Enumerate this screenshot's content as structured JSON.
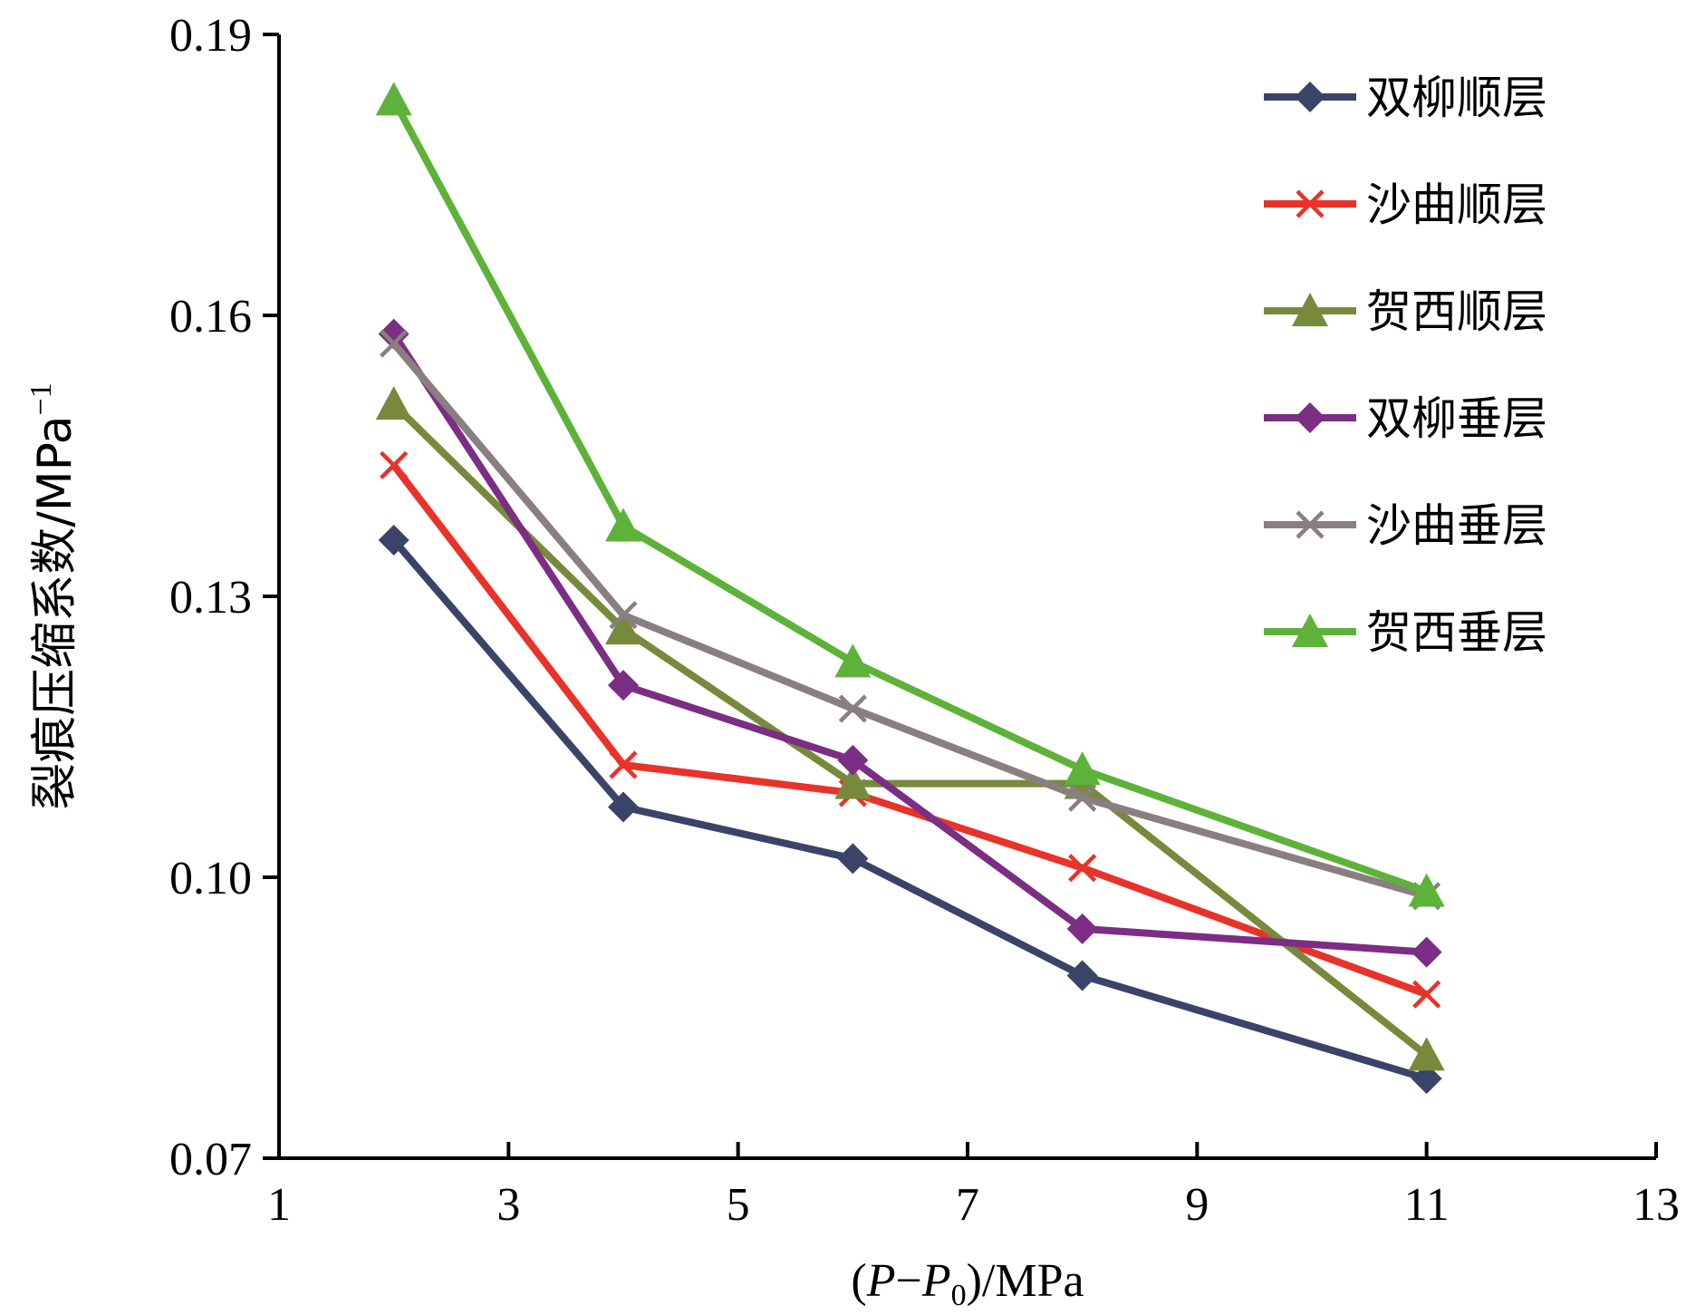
{
  "chart_data": {
    "type": "line",
    "xlabel": "(P−P0)/MPa",
    "xlabel_parts": {
      "open": "(",
      "p": "P",
      "minus": "−",
      "p0": "P",
      "sub": "0",
      "rest": ")/MPa"
    },
    "ylabel": "裂痕压缩系数/MPa−1",
    "ylabel_parts": {
      "main": "裂痕压缩系数/MPa",
      "sup": "−1"
    },
    "xlim": [
      1,
      13
    ],
    "ylim": [
      0.07,
      0.19
    ],
    "x_ticks": [
      1,
      3,
      5,
      7,
      9,
      11,
      13
    ],
    "y_ticks": [
      0.07,
      0.1,
      0.13,
      0.16,
      0.19
    ],
    "x_tick_labels": [
      "1",
      "3",
      "5",
      "7",
      "9",
      "11",
      "13"
    ],
    "y_tick_labels": [
      "0.07",
      "0.10",
      "0.13",
      "0.16",
      "0.19"
    ],
    "grid": false,
    "legend_position": "top-right",
    "x": [
      2,
      4,
      6,
      8,
      11
    ],
    "series": [
      {
        "name": "双柳顺层",
        "color": "#3a4468",
        "marker": "diamond",
        "values": [
          0.136,
          0.1075,
          0.102,
          0.0895,
          0.0785
        ]
      },
      {
        "name": "沙曲顺层",
        "color": "#e8332a",
        "marker": "x",
        "values": [
          0.144,
          0.112,
          0.109,
          0.101,
          0.0875
        ]
      },
      {
        "name": "贺西顺层",
        "color": "#778a3c",
        "marker": "triangle",
        "values": [
          0.1505,
          0.1265,
          0.11,
          0.11,
          0.081
        ]
      },
      {
        "name": "双柳垂层",
        "color": "#7b2e83",
        "marker": "diamond",
        "values": [
          0.158,
          0.1205,
          0.1125,
          0.0945,
          0.092
        ]
      },
      {
        "name": "沙曲垂层",
        "color": "#8a7f80",
        "marker": "x",
        "values": [
          0.157,
          0.128,
          0.118,
          0.1085,
          0.098
        ]
      },
      {
        "name": "贺西垂层",
        "color": "#5db339",
        "marker": "triangle",
        "values": [
          0.183,
          0.1375,
          0.123,
          0.1115,
          0.0985
        ]
      }
    ]
  }
}
